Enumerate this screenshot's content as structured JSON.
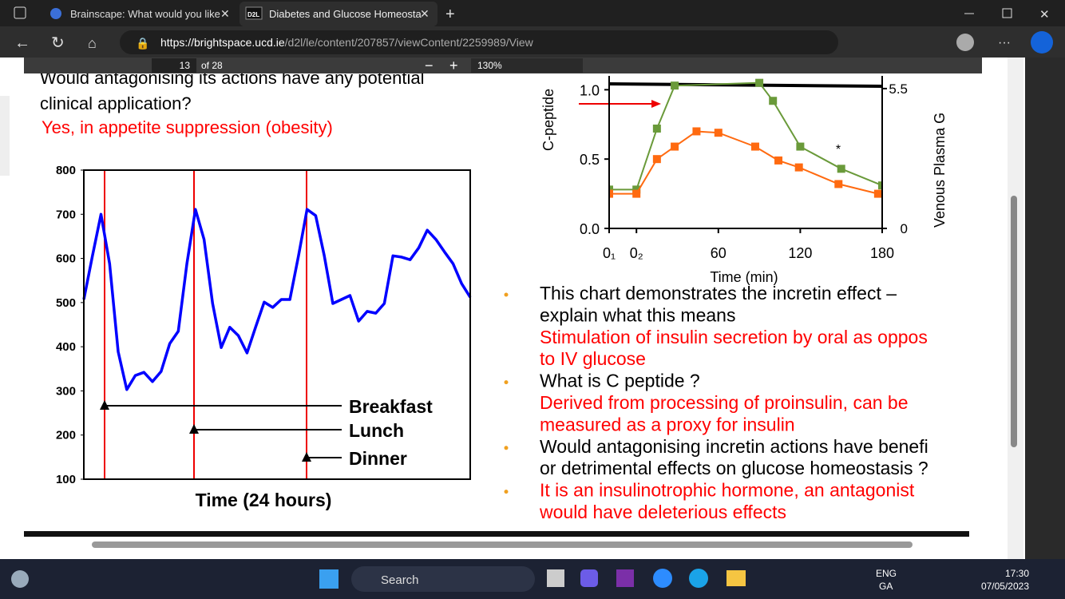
{
  "browser": {
    "tabs": [
      "Brainscape: What would you like",
      "Diabetes and Glucose Homeosta"
    ],
    "tab_icon": "D2L",
    "url_host": "https://brightspace.ucd.ie",
    "url_path": "/d2l/le/content/207857/viewContent/2259989/View"
  },
  "pdf_toolbar": {
    "page": "13",
    "of": "of 28",
    "zoom": "130%"
  },
  "slide": {
    "left_text": [
      "Would antagonising its actions have any potential",
      "clinical application?"
    ],
    "left_answer": "Yes, in appetite suppression (obesity)",
    "bullets": [
      {
        "lines": [
          "This chart demonstrates the incretin effect –",
          "explain what this means"
        ],
        "color": "#000000",
        "bullet": true
      },
      {
        "lines": [
          "Stimulation of insulin secretion by oral as oppos",
          "to IV glucose"
        ],
        "color": "#ff0000",
        "bullet": false
      },
      {
        "lines": [
          "What is C peptide ?"
        ],
        "color": "#000000",
        "bullet": true
      },
      {
        "lines": [
          "Derived from processing of proinsulin, can be",
          "measured as a proxy for insulin"
        ],
        "color": "#ff0000",
        "bullet": false
      },
      {
        "lines": [
          "Would antagonising incretin actions have benefi",
          "or detrimental effects on glucose homeostasis ?"
        ],
        "color": "#000000",
        "bullet": true
      },
      {
        "lines": [
          "It is an insulinotrophic hormone, an antagonist",
          "would have deleterious effects"
        ],
        "color": "#ff0000",
        "bullet": true
      }
    ]
  },
  "chart_data": [
    {
      "type": "line",
      "xlabel": "Time (24 hours)",
      "ylim": [
        100,
        800
      ],
      "yticks": [
        100,
        200,
        300,
        400,
        500,
        600,
        700,
        800
      ],
      "color": "#0000ff",
      "annotations": [
        "Breakfast",
        "Lunch",
        "Dinner"
      ],
      "values": [
        507,
        606,
        700,
        588,
        389,
        303,
        335,
        342,
        321,
        344,
        407,
        435,
        588,
        711,
        643,
        498,
        398,
        444,
        425,
        386,
        444,
        501,
        489,
        507,
        507,
        606,
        711,
        697,
        606,
        498,
        507,
        516,
        458,
        480,
        476,
        498,
        606,
        603,
        597,
        624,
        664,
        643,
        615,
        588,
        543,
        512
      ]
    },
    {
      "type": "line",
      "xlabel": "Time (min)",
      "ylabel": "C-peptide",
      "y2label": "Venous Plasma G",
      "annotation": "*",
      "xlim": [
        -20,
        180
      ],
      "xticks": [
        {
          "value": -20,
          "label": "0₁"
        },
        {
          "value": 0,
          "label": "0₂"
        },
        60,
        120,
        180
      ],
      "ylim": [
        0,
        1.1
      ],
      "yticks": [
        {
          "value": 0,
          "label": "0.0"
        },
        {
          "value": 0.5,
          "label": "0.5"
        },
        {
          "value": 1,
          "label": "1.0"
        }
      ],
      "y2lim": [
        0,
        6
      ],
      "y2ticks": [
        0,
        5.5
      ],
      "series": [
        {
          "color": "#6a9a3a",
          "x": [
            -20,
            0,
            15,
            28,
            90,
            100,
            120,
            150,
            180
          ],
          "values": [
            0.28,
            0.28,
            0.72,
            1.03,
            1.05,
            0.92,
            0.59,
            0.43,
            0.31
          ]
        },
        {
          "color": "#ff6a10",
          "x": [
            -20,
            0,
            15,
            28,
            44,
            60,
            87,
            104,
            119,
            148,
            177
          ],
          "values": [
            0.25,
            0.25,
            0.5,
            0.59,
            0.7,
            0.69,
            0.59,
            0.49,
            0.44,
            0.32,
            0.25
          ]
        }
      ]
    }
  ],
  "taskbar": {
    "search": "Search",
    "lang": [
      "ENG",
      "GA"
    ],
    "time": "17:30",
    "date": "07/05/2023"
  }
}
